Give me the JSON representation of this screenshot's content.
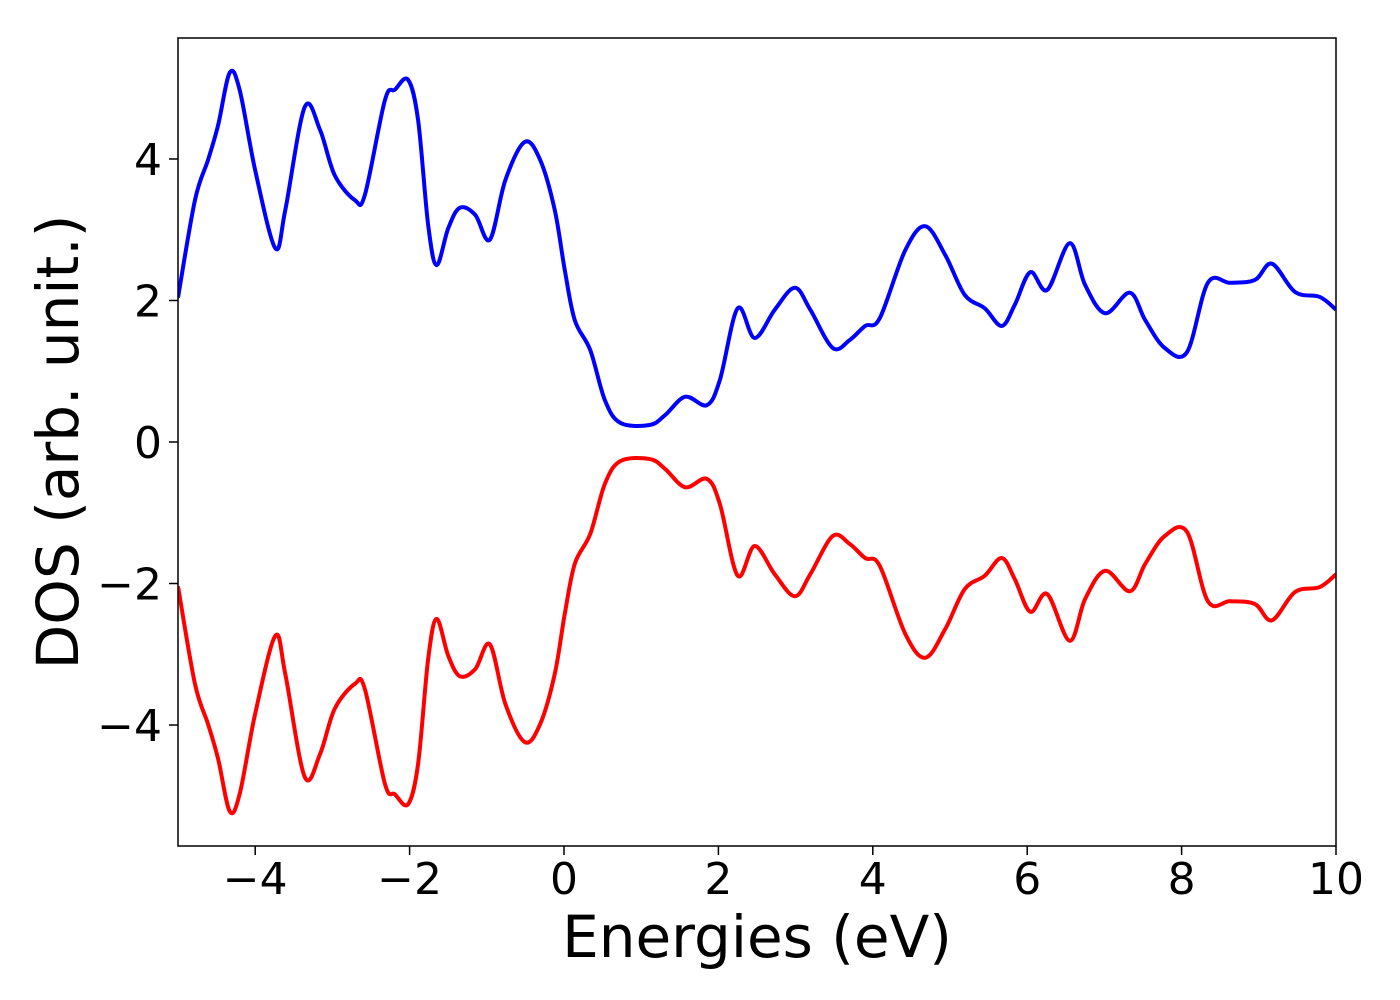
{
  "chart_data": {
    "type": "line",
    "x_label": "Energies (eV)",
    "y_label": "DOS (arb. unit.)",
    "x": [
      -5,
      -4.78,
      -4.61,
      -4.48,
      -4.33,
      -4.2,
      -4.0,
      -3.74,
      -3.61,
      -3.36,
      -3.16,
      -2.97,
      -2.71,
      -2.58,
      -2.32,
      -2.19,
      -2.02,
      -1.89,
      -1.76,
      -1.65,
      -1.5,
      -1.35,
      -1.15,
      -0.96,
      -0.76,
      -0.51,
      -0.31,
      -0.12,
      0.01,
      0.14,
      0.34,
      0.53,
      0.73,
      1.11,
      1.31,
      1.57,
      1.85,
      2.02,
      2.25,
      2.47,
      2.73,
      2.99,
      3.19,
      3.48,
      3.7,
      3.9,
      4.09,
      4.42,
      4.68,
      4.94,
      5.19,
      5.45,
      5.67,
      5.84,
      6.04,
      6.26,
      6.55,
      6.75,
      7.01,
      7.33,
      7.53,
      7.78,
      8.07,
      8.34,
      8.63,
      8.95,
      9.17,
      9.47,
      9.79,
      10
    ],
    "series": [
      {
        "color": "#0000ff",
        "values": [
          2.04,
          3.42,
          3.99,
          4.48,
          5.22,
          4.97,
          3.84,
          2.74,
          3.28,
          4.73,
          4.41,
          3.77,
          3.42,
          3.49,
          4.83,
          4.98,
          5.12,
          4.55,
          3.07,
          2.5,
          3.02,
          3.31,
          3.21,
          2.86,
          3.7,
          4.24,
          3.99,
          3.28,
          2.43,
          1.72,
          1.3,
          0.59,
          0.27,
          0.24,
          0.38,
          0.64,
          0.52,
          0.88,
          1.89,
          1.47,
          1.87,
          2.18,
          1.87,
          1.33,
          1.44,
          1.64,
          1.75,
          2.71,
          3.05,
          2.64,
          2.08,
          1.89,
          1.64,
          1.94,
          2.4,
          2.15,
          2.81,
          2.22,
          1.82,
          2.11,
          1.72,
          1.33,
          1.27,
          2.25,
          2.25,
          2.29,
          2.52,
          2.12,
          2.05,
          1.87
        ]
      },
      {
        "color": "#ff0000",
        "values": [
          -2.04,
          -3.42,
          -3.99,
          -4.48,
          -5.22,
          -4.97,
          -3.84,
          -2.74,
          -3.28,
          -4.73,
          -4.41,
          -3.77,
          -3.42,
          -3.49,
          -4.83,
          -4.98,
          -5.12,
          -4.55,
          -3.07,
          -2.5,
          -3.02,
          -3.31,
          -3.21,
          -2.86,
          -3.7,
          -4.24,
          -3.99,
          -3.28,
          -2.43,
          -1.72,
          -1.3,
          -0.59,
          -0.27,
          -0.24,
          -0.38,
          -0.64,
          -0.52,
          -0.88,
          -1.89,
          -1.47,
          -1.87,
          -2.18,
          -1.87,
          -1.33,
          -1.44,
          -1.64,
          -1.75,
          -2.71,
          -3.05,
          -2.64,
          -2.08,
          -1.89,
          -1.64,
          -1.94,
          -2.4,
          -2.15,
          -2.81,
          -2.22,
          -1.82,
          -2.11,
          -1.72,
          -1.33,
          -1.27,
          -2.25,
          -2.25,
          -2.29,
          -2.52,
          -2.12,
          -2.05,
          -1.87
        ]
      }
    ],
    "xlim": [
      -5,
      10
    ],
    "xticks": [
      {
        "value": -4,
        "label": "−4"
      },
      {
        "value": -2,
        "label": "−2"
      },
      0,
      2,
      4,
      6,
      8,
      10
    ],
    "ylim": [
      -5.71,
      5.71
    ],
    "yticks": [
      {
        "value": -4,
        "label": "−4"
      },
      {
        "value": -2,
        "label": "−2"
      },
      0,
      2,
      4
    ],
    "grid": false
  }
}
